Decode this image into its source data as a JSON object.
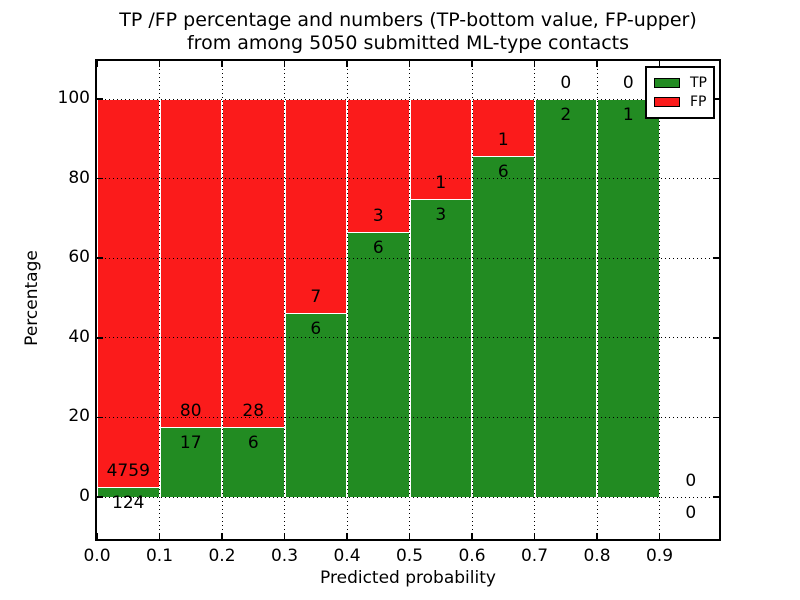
{
  "title": {
    "line1": "TP /FP percentage and numbers (TP-bottom value, FP-upper)",
    "line2": "from among 5050 submitted ML-type contacts"
  },
  "axes": {
    "xlabel": "Predicted probability",
    "ylabel": "Percentage",
    "yticks": [
      "0",
      "20",
      "40",
      "60",
      "80",
      "100"
    ],
    "xticks": [
      "0.0",
      "0.1",
      "0.2",
      "0.3",
      "0.4",
      "0.5",
      "0.6",
      "0.7",
      "0.8",
      "0.9"
    ]
  },
  "legend": {
    "position": "upper right",
    "items": [
      {
        "label": "TP",
        "color": "#228b22"
      },
      {
        "label": "FP",
        "color": "#fb1b1b"
      }
    ]
  },
  "chart_data": {
    "type": "bar",
    "stacked": true,
    "title": "TP /FP percentage and numbers (TP-bottom value, FP-upper) from among 5050 submitted ML-type contacts",
    "xlabel": "Predicted probability",
    "ylabel": "Percentage",
    "total_submitted": 5050,
    "bin_width": 0.1,
    "bin_starts": [
      0.0,
      0.1,
      0.2,
      0.3,
      0.4,
      0.5,
      0.6,
      0.7,
      0.8,
      0.9
    ],
    "series": [
      {
        "name": "TP",
        "color": "#228b22",
        "counts": [
          124,
          17,
          6,
          6,
          6,
          3,
          6,
          2,
          1,
          0
        ]
      },
      {
        "name": "FP",
        "color": "#fb1b1b",
        "counts": [
          4759,
          80,
          28,
          7,
          3,
          1,
          1,
          0,
          0,
          0
        ]
      }
    ],
    "tp_percent_of_bin": [
      2.54,
      17.53,
      17.65,
      46.15,
      66.67,
      75.0,
      85.71,
      100.0,
      100.0,
      null
    ],
    "bar_total_percent": 100,
    "yticks": [
      0,
      20,
      40,
      60,
      80,
      100
    ],
    "xticks": [
      0.0,
      0.1,
      0.2,
      0.3,
      0.4,
      0.5,
      0.6,
      0.7,
      0.8,
      0.9
    ],
    "ylim": [
      -10.5,
      109.5
    ],
    "xlim": [
      0.0,
      1.0
    ],
    "grid": true,
    "legend_position": "upper right"
  }
}
